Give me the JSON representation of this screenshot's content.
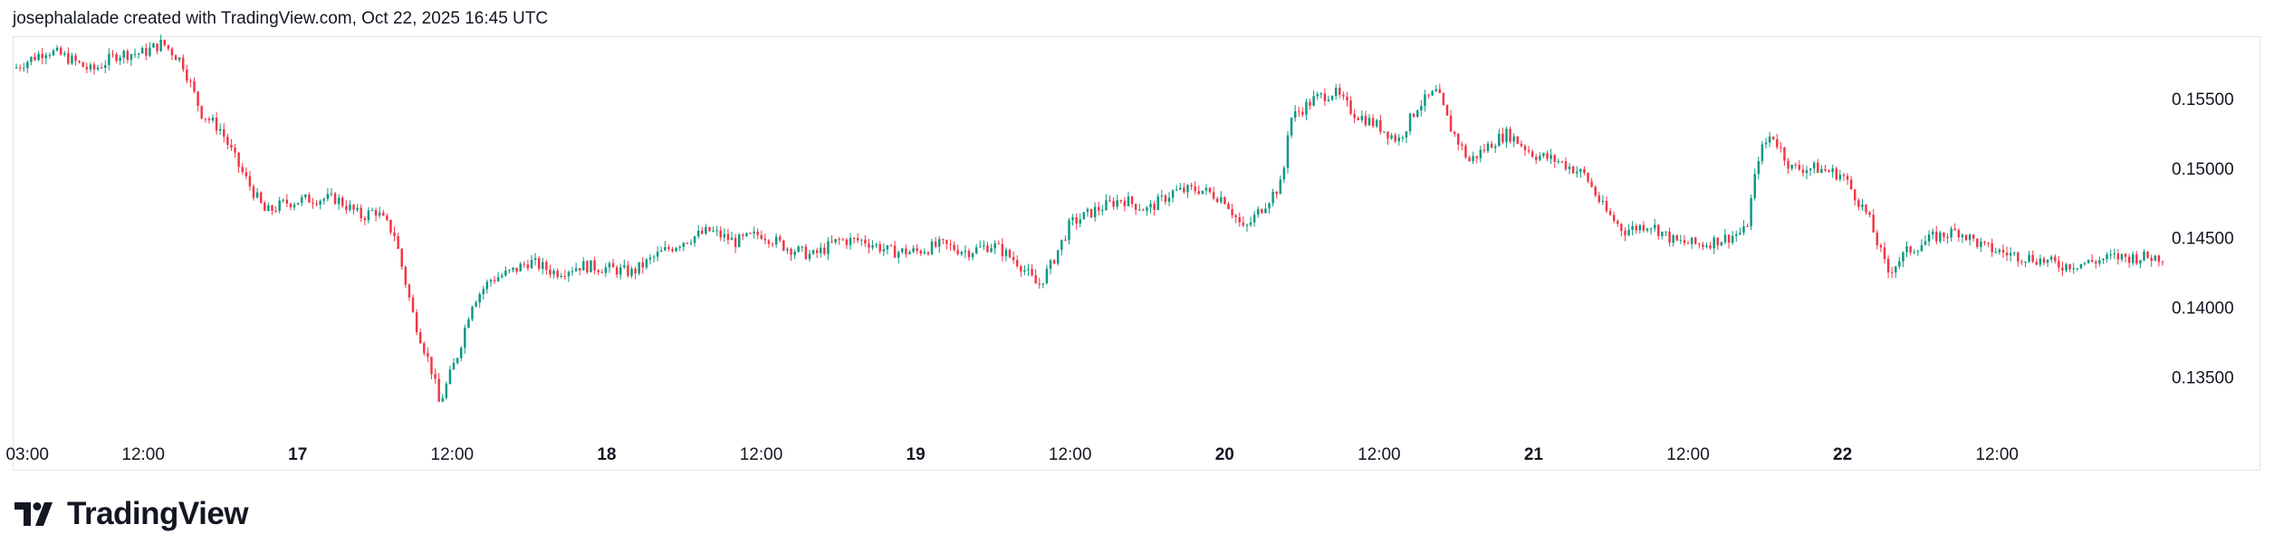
{
  "header": {
    "attribution": "josephalalade created with TradingView.com, Oct 22, 2025 16:45 UTC"
  },
  "footer": {
    "logo_text": "TradingView",
    "logo_icon": "tradingview-logo-icon"
  },
  "colors": {
    "up": "#089981",
    "down": "#f23645",
    "frame": "#e0e3eb",
    "text": "#131722"
  },
  "chart_data": {
    "type": "candlestick",
    "ylim": [
      0.1315,
      0.1595
    ],
    "y_ticks": [
      "0.15500",
      "0.15000",
      "0.14500",
      "0.14000",
      "0.13500"
    ],
    "y_tick_values": [
      0.155,
      0.15,
      0.145,
      0.14,
      0.135
    ],
    "x_ticks": [
      {
        "label": "03:00",
        "bold": false
      },
      {
        "label": "12:00",
        "bold": false
      },
      {
        "label": "17",
        "bold": true
      },
      {
        "label": "12:00",
        "bold": false
      },
      {
        "label": "18",
        "bold": true
      },
      {
        "label": "12:00",
        "bold": false
      },
      {
        "label": "19",
        "bold": true
      },
      {
        "label": "12:00",
        "bold": false
      },
      {
        "label": "20",
        "bold": true
      },
      {
        "label": "12:00",
        "bold": false
      },
      {
        "label": "21",
        "bold": true
      },
      {
        "label": "12:00",
        "bold": false
      },
      {
        "label": "22",
        "bold": true
      },
      {
        "label": "12:00",
        "bold": false
      }
    ],
    "x_tick_hours": [
      3,
      12,
      24,
      36,
      48,
      60,
      72,
      84,
      96,
      108,
      120,
      132,
      144,
      156
    ],
    "x_range_hours": [
      2,
      169
    ],
    "candle_count": 580,
    "close_path": [
      [
        2,
        0.1572
      ],
      [
        4.5,
        0.1585
      ],
      [
        6,
        0.158
      ],
      [
        8,
        0.157
      ],
      [
        10,
        0.1582
      ],
      [
        12,
        0.1583
      ],
      [
        13.5,
        0.159
      ],
      [
        15,
        0.1577
      ],
      [
        16.5,
        0.154
      ],
      [
        18,
        0.1528
      ],
      [
        19.5,
        0.15
      ],
      [
        21.5,
        0.1468
      ],
      [
        23,
        0.1475
      ],
      [
        25,
        0.1478
      ],
      [
        27,
        0.1478
      ],
      [
        29,
        0.1465
      ],
      [
        30,
        0.147
      ],
      [
        31.5,
        0.1453
      ],
      [
        33,
        0.1393
      ],
      [
        34.5,
        0.1352
      ],
      [
        35,
        0.133
      ],
      [
        36.5,
        0.1368
      ],
      [
        37.5,
        0.1403
      ],
      [
        39,
        0.142
      ],
      [
        40.5,
        0.1425
      ],
      [
        42,
        0.1433
      ],
      [
        44,
        0.1425
      ],
      [
        46,
        0.143
      ],
      [
        48,
        0.1428
      ],
      [
        50,
        0.1425
      ],
      [
        52,
        0.1438
      ],
      [
        54,
        0.1448
      ],
      [
        56,
        0.1455
      ],
      [
        58,
        0.1447
      ],
      [
        60,
        0.1453
      ],
      [
        62,
        0.1443
      ],
      [
        64,
        0.1437
      ],
      [
        66,
        0.1448
      ],
      [
        68,
        0.1448
      ],
      [
        70,
        0.144
      ],
      [
        72,
        0.144
      ],
      [
        74,
        0.1445
      ],
      [
        76,
        0.144
      ],
      [
        78,
        0.1445
      ],
      [
        80,
        0.1432
      ],
      [
        81.5,
        0.1415
      ],
      [
        82.5,
        0.143
      ],
      [
        84,
        0.146
      ],
      [
        86,
        0.147
      ],
      [
        88,
        0.1478
      ],
      [
        90,
        0.147
      ],
      [
        92,
        0.1483
      ],
      [
        94,
        0.1485
      ],
      [
        96,
        0.1478
      ],
      [
        97.5,
        0.1455
      ],
      [
        99,
        0.1473
      ],
      [
        100.5,
        0.149
      ],
      [
        101,
        0.1535
      ],
      [
        103,
        0.155
      ],
      [
        104.5,
        0.1555
      ],
      [
        106,
        0.154
      ],
      [
        108,
        0.153
      ],
      [
        109.5,
        0.152
      ],
      [
        111,
        0.1545
      ],
      [
        112.5,
        0.1555
      ],
      [
        113.5,
        0.153
      ],
      [
        115,
        0.1505
      ],
      [
        117,
        0.152
      ],
      [
        118,
        0.1525
      ],
      [
        120,
        0.151
      ],
      [
        122,
        0.1505
      ],
      [
        124,
        0.1495
      ],
      [
        125.5,
        0.147
      ],
      [
        127,
        0.1455
      ],
      [
        129,
        0.146
      ],
      [
        131,
        0.1447
      ],
      [
        133,
        0.1445
      ],
      [
        135,
        0.145
      ],
      [
        136.5,
        0.1455
      ],
      [
        137.5,
        0.151
      ],
      [
        138.5,
        0.1525
      ],
      [
        140,
        0.15
      ],
      [
        142,
        0.15
      ],
      [
        144,
        0.1495
      ],
      [
        146,
        0.1465
      ],
      [
        147.5,
        0.1425
      ],
      [
        149,
        0.144
      ],
      [
        151,
        0.145
      ],
      [
        153,
        0.1455
      ],
      [
        155,
        0.1443
      ],
      [
        157,
        0.1438
      ],
      [
        159,
        0.1435
      ],
      [
        161,
        0.143
      ],
      [
        163,
        0.1432
      ],
      [
        165,
        0.1436
      ]
    ]
  }
}
